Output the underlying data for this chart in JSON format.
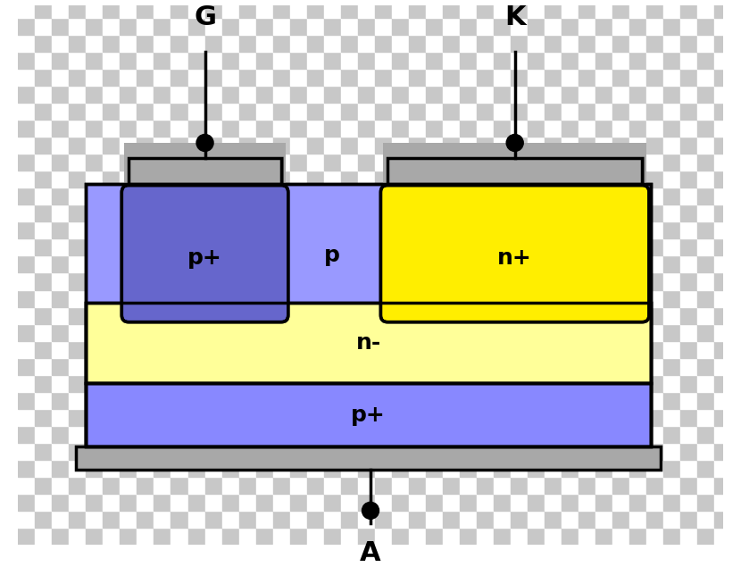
{
  "bg_checker_color1": "#c8c8c8",
  "bg_checker_color2": "#ffffff",
  "checker_size": 20,
  "p_layer_color": "#9999ff",
  "n_minus_color": "#ffff99",
  "p_plus_bottom_color": "#8888ff",
  "p_plus_region_color": "#6666cc",
  "n_plus_region_color": "#ffee00",
  "metal_color": "#a8a8a8",
  "outline_color": "#000000",
  "p_layer_label": "p",
  "n_minus_label": "n-",
  "p_plus_bottom_label": "p+",
  "p_plus_region_label": "p+",
  "n_plus_region_label": "n+",
  "label_G": "G",
  "label_K": "K",
  "label_A": "A",
  "font_size_terminal": 22,
  "font_size_region": 18,
  "font_weight": "bold"
}
